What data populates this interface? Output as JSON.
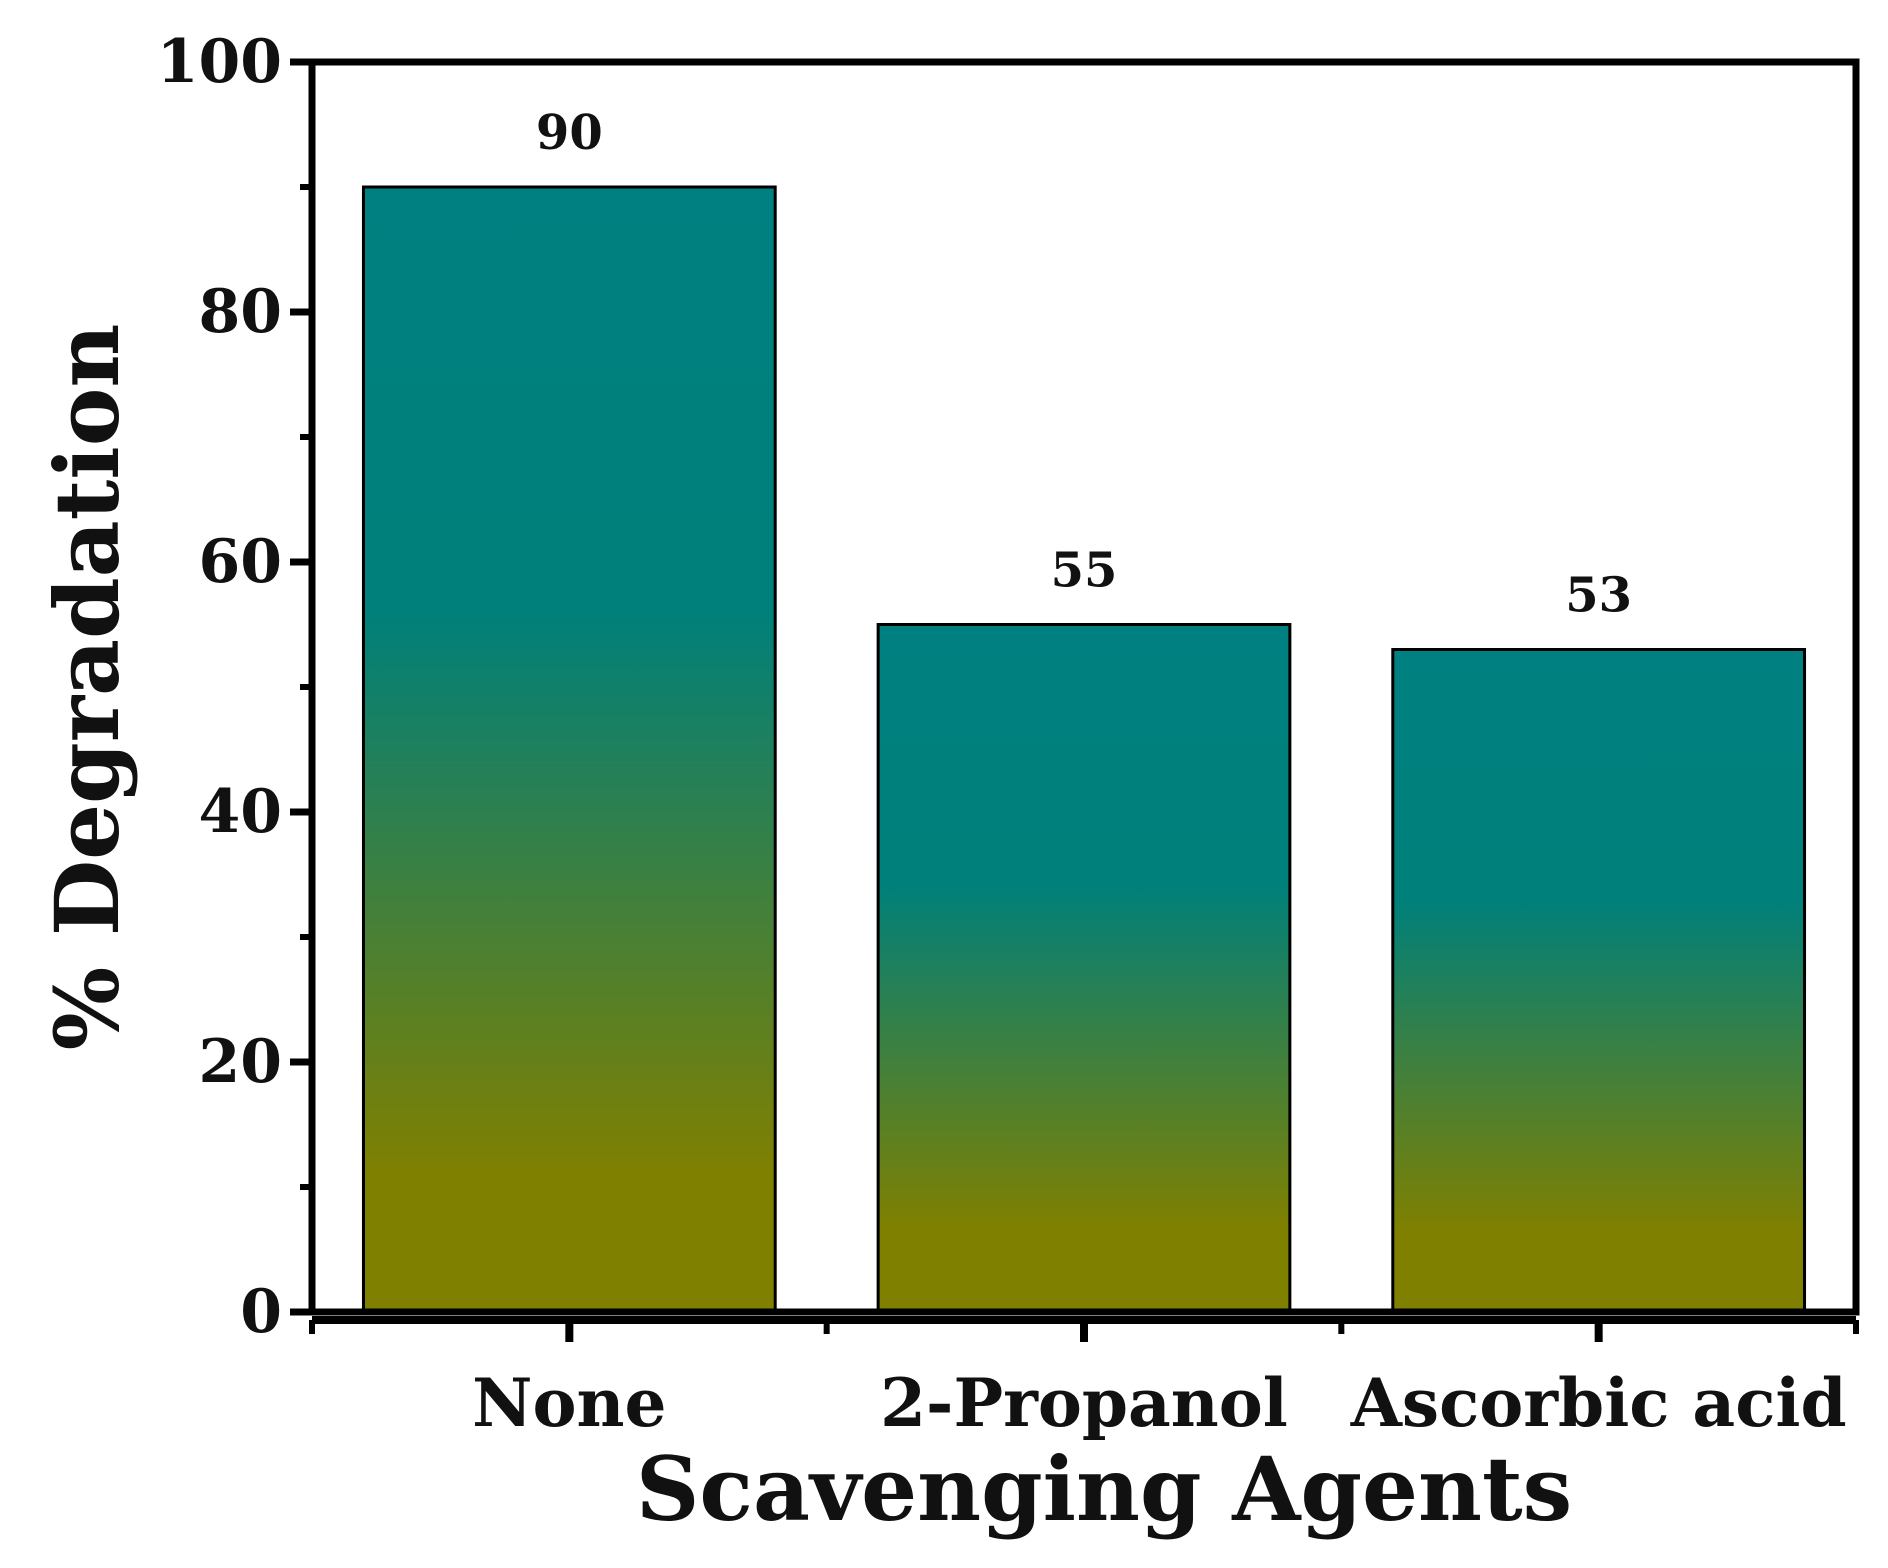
{
  "chart_data": {
    "type": "bar",
    "categories": [
      "None",
      "2-Propanol",
      "Ascorbic acid"
    ],
    "values": [
      90,
      55,
      53
    ],
    "data_labels": [
      "90",
      "55",
      "53"
    ],
    "title": "",
    "xlabel": "Scavenging Agents",
    "ylabel": "% Degradation",
    "ylim": [
      0,
      100
    ],
    "yticks": [
      0,
      20,
      40,
      60,
      80,
      100
    ],
    "ytick_labels": [
      "0",
      "20",
      "40",
      "60",
      "80",
      "100"
    ],
    "y_minor_step": 10,
    "grid": false,
    "legend": "none",
    "colors": {
      "bar_top": "#008080",
      "bar_bottom": "#808000",
      "bar_edge": "#000000",
      "axis": "#000000"
    }
  }
}
